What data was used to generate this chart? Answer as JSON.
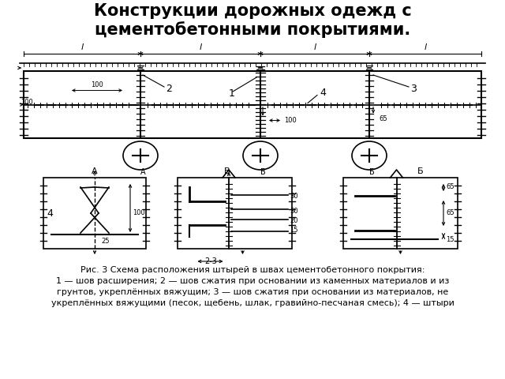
{
  "title": "Конструкции дорожных одежд с\nцементобетонными покрытиями.",
  "title_fontsize": 15,
  "caption_line1": "Рис. 3 Схема расположения штырей в швах цементобетонного покрытия:",
  "caption_line2": "1 — шов расширения; 2 — шов сжатия при основании из каменных материалов и из",
  "caption_line3": "грунтов, укреплённых вяжущим; 3 — шов сжатия при основании из материалов, не",
  "caption_line4": "укреплённых вяжущими (песок, щебень, шлак, гравийно-песчаная смесь); 4 — штыри",
  "bg_color": "#ffffff",
  "line_color": "#000000"
}
